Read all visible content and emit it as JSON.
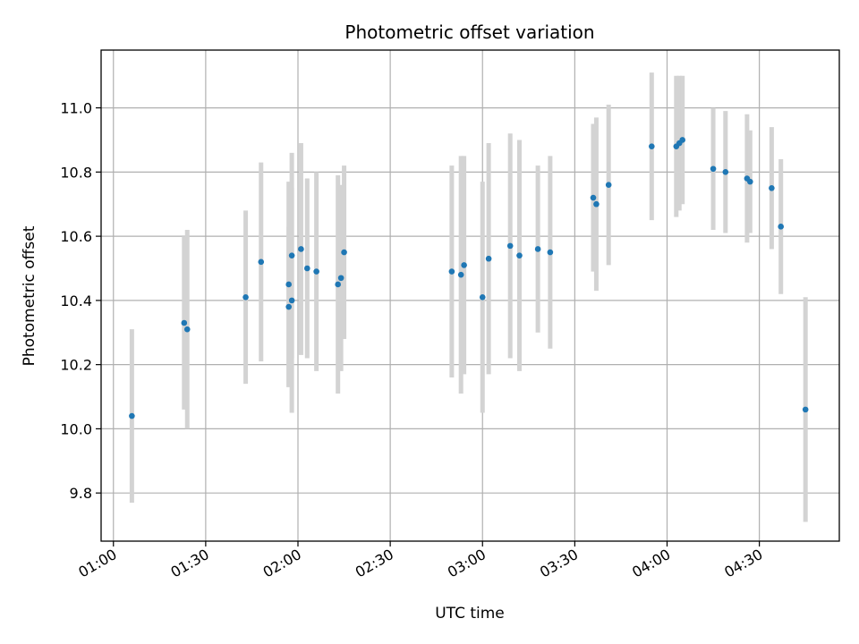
{
  "chart_data": {
    "type": "scatter",
    "title": "Photometric offset variation",
    "xlabel": "UTC time",
    "ylabel": "Photometric offset",
    "xlim": [
      "00:56",
      "04:56"
    ],
    "ylim": [
      9.65,
      11.18
    ],
    "xticks": [
      "01:00",
      "01:30",
      "02:00",
      "02:30",
      "03:00",
      "03:30",
      "04:00",
      "04:30"
    ],
    "yticks": [
      "9.8",
      "10.0",
      "10.2",
      "10.4",
      "10.6",
      "10.8",
      "11.0"
    ],
    "grid": true,
    "point_color": "#1f77b4",
    "errorbar_color": "#d3d3d3",
    "points": [
      {
        "x": "01:06",
        "y": 10.04,
        "err": 0.27
      },
      {
        "x": "01:23",
        "y": 10.33,
        "err": 0.27
      },
      {
        "x": "01:24",
        "y": 10.31,
        "err": 0.31
      },
      {
        "x": "01:43",
        "y": 10.41,
        "err": 0.27
      },
      {
        "x": "01:48",
        "y": 10.52,
        "err": 0.31
      },
      {
        "x": "01:57",
        "y": 10.45,
        "err": 0.32
      },
      {
        "x": "01:57",
        "y": 10.38,
        "err": 0.25
      },
      {
        "x": "01:58",
        "y": 10.4,
        "err": 0.35
      },
      {
        "x": "01:58",
        "y": 10.54,
        "err": 0.32
      },
      {
        "x": "02:01",
        "y": 10.56,
        "err": 0.33
      },
      {
        "x": "02:03",
        "y": 10.5,
        "err": 0.28
      },
      {
        "x": "02:06",
        "y": 10.49,
        "err": 0.31
      },
      {
        "x": "02:13",
        "y": 10.45,
        "err": 0.34
      },
      {
        "x": "02:14",
        "y": 10.47,
        "err": 0.29
      },
      {
        "x": "02:15",
        "y": 10.55,
        "err": 0.27
      },
      {
        "x": "02:50",
        "y": 10.49,
        "err": 0.33
      },
      {
        "x": "02:53",
        "y": 10.48,
        "err": 0.37
      },
      {
        "x": "02:54",
        "y": 10.51,
        "err": 0.34
      },
      {
        "x": "03:00",
        "y": 10.41,
        "err": 0.36
      },
      {
        "x": "03:02",
        "y": 10.53,
        "err": 0.36
      },
      {
        "x": "03:09",
        "y": 10.57,
        "err": 0.35
      },
      {
        "x": "03:12",
        "y": 10.54,
        "err": 0.36
      },
      {
        "x": "03:18",
        "y": 10.56,
        "err": 0.26
      },
      {
        "x": "03:22",
        "y": 10.55,
        "err": 0.3
      },
      {
        "x": "03:36",
        "y": 10.72,
        "err": 0.23
      },
      {
        "x": "03:37",
        "y": 10.7,
        "err": 0.27
      },
      {
        "x": "03:41",
        "y": 10.76,
        "err": 0.25
      },
      {
        "x": "03:55",
        "y": 10.88,
        "err": 0.23
      },
      {
        "x": "04:03",
        "y": 10.88,
        "err": 0.22
      },
      {
        "x": "04:04",
        "y": 10.89,
        "err": 0.21
      },
      {
        "x": "04:05",
        "y": 10.9,
        "err": 0.2
      },
      {
        "x": "04:15",
        "y": 10.81,
        "err": 0.19
      },
      {
        "x": "04:19",
        "y": 10.8,
        "err": 0.19
      },
      {
        "x": "04:26",
        "y": 10.78,
        "err": 0.2
      },
      {
        "x": "04:27",
        "y": 10.77,
        "err": 0.16
      },
      {
        "x": "04:34",
        "y": 10.75,
        "err": 0.19
      },
      {
        "x": "04:37",
        "y": 10.63,
        "err": 0.21
      },
      {
        "x": "04:45",
        "y": 10.06,
        "err": 0.35
      }
    ]
  }
}
